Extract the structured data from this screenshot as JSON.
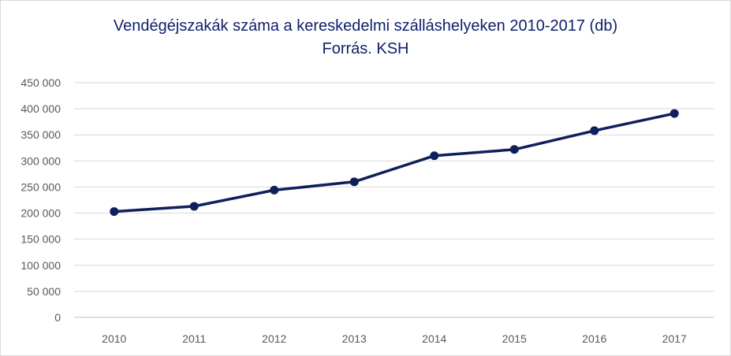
{
  "chart_data": {
    "type": "line",
    "title": "Vendégéjszakák száma a kereskedelmi  szálláshelyeken 2010-2017 (db)",
    "subtitle": "Forrás. KSH",
    "xlabel": "",
    "ylabel": "",
    "categories": [
      "2010",
      "2011",
      "2012",
      "2013",
      "2014",
      "2015",
      "2016",
      "2017"
    ],
    "series": [
      {
        "values": [
          203000,
          213000,
          244000,
          260000,
          310000,
          322000,
          358000,
          391000
        ]
      }
    ],
    "ylim": [
      0,
      450000
    ],
    "yticks": [
      0,
      50000,
      100000,
      150000,
      200000,
      250000,
      300000,
      350000,
      400000,
      450000
    ],
    "ytick_labels": [
      "0",
      "50 000",
      "100 000",
      "150 000",
      "200 000",
      "250 000",
      "300 000",
      "350 000",
      "400 000",
      "450 000"
    ],
    "grid": true,
    "legend": "none",
    "colors": {
      "line": "#0f1f5c",
      "title": "#10206b"
    }
  }
}
